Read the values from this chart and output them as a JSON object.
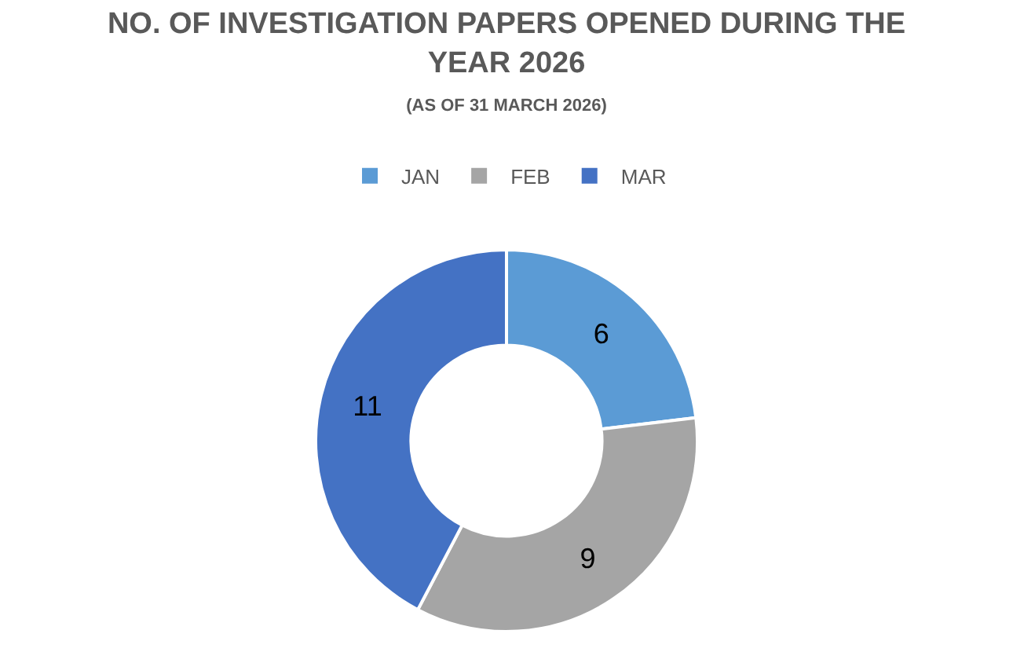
{
  "chart_data": {
    "type": "donut",
    "title": "NO. OF INVESTIGATION PAPERS OPENED DURING THE YEAR 2026",
    "subtitle": "(AS OF 31 MARCH 2026)",
    "categories": [
      "JAN",
      "FEB",
      "MAR"
    ],
    "values": [
      6,
      9,
      11
    ],
    "colors": [
      "#5b9bd5",
      "#a5a5a5",
      "#4472c4"
    ],
    "data_labels": true,
    "legend": "top"
  }
}
